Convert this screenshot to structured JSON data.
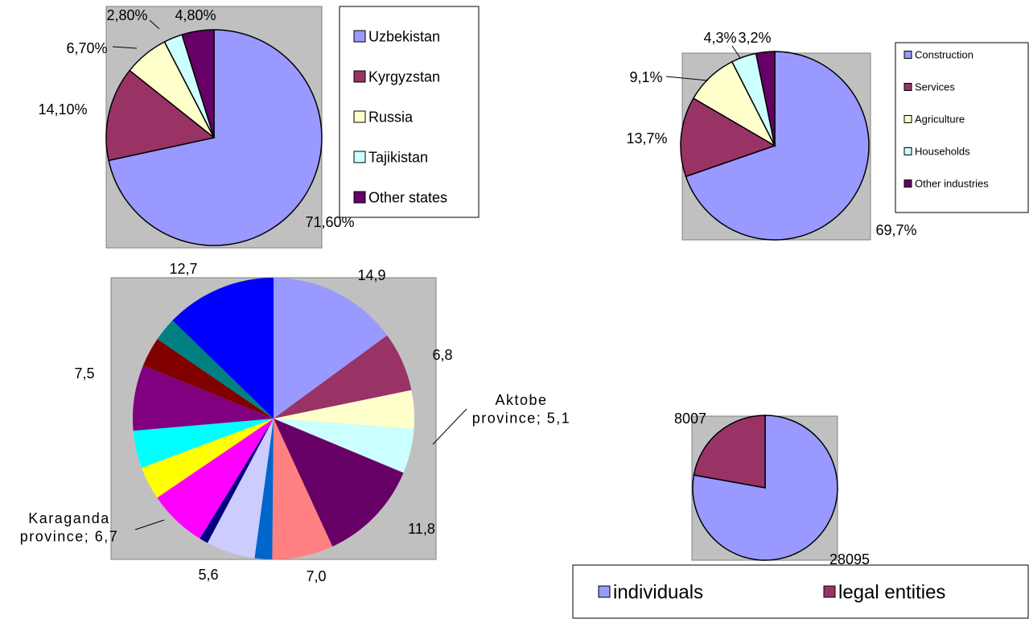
{
  "chart_data": [
    {
      "type": "pie",
      "title": "",
      "series": [
        {
          "name": "Uzbekistan",
          "value": 71.6,
          "label": "71,60%",
          "color": "#9999FF"
        },
        {
          "name": "Kyrgyzstan",
          "value": 14.1,
          "label": "14,10%",
          "color": "#993366"
        },
        {
          "name": "Russia",
          "value": 6.7,
          "label": "6,70%",
          "color": "#FFFFCC"
        },
        {
          "name": "Tajikistan",
          "value": 2.8,
          "label": "2,80%",
          "color": "#CCFFFF"
        },
        {
          "name": "Other states",
          "value": 4.8,
          "label": "4,80%",
          "color": "#660066"
        }
      ],
      "legend_position": "right"
    },
    {
      "type": "pie",
      "title": "",
      "series": [
        {
          "name": "Construction",
          "value": 69.7,
          "label": "69,7%",
          "color": "#9999FF"
        },
        {
          "name": "Services",
          "value": 13.7,
          "label": "13,7%",
          "color": "#993366"
        },
        {
          "name": "Agriculture",
          "value": 9.1,
          "label": "9,1%",
          "color": "#FFFFCC"
        },
        {
          "name": "Households",
          "value": 4.3,
          "label": "4,3%",
          "color": "#CCFFFF"
        },
        {
          "name": "Other industries",
          "value": 3.2,
          "label": "3,2%",
          "color": "#660066"
        }
      ],
      "legend_position": "right"
    },
    {
      "type": "pie",
      "title": "",
      "series": [
        {
          "value": 14.9,
          "label": "14,9",
          "color": "#9999FF"
        },
        {
          "value": 6.8,
          "label": "6,8",
          "color": "#993366"
        },
        {
          "value": 4.4,
          "label": "",
          "color": "#FFFFCC"
        },
        {
          "value": 5.1,
          "label": "Aktobe province; 5,1",
          "color": "#CCFFFF"
        },
        {
          "value": 11.8,
          "label": "11,8",
          "color": "#660066"
        },
        {
          "value": 7.0,
          "label": "7,0",
          "color": "#FF8080"
        },
        {
          "value": 2.0,
          "label": "",
          "color": "#0066CC"
        },
        {
          "value": 5.6,
          "label": "5,6",
          "color": "#CCCCFF"
        },
        {
          "value": 1.0,
          "label": "",
          "color": "#000080"
        },
        {
          "value": 6.7,
          "label": "Karaganda province; 6,7",
          "color": "#FF00FF"
        },
        {
          "value": 3.8,
          "label": "",
          "color": "#FFFF00"
        },
        {
          "value": 4.3,
          "label": "",
          "color": "#00FFFF"
        },
        {
          "value": 7.5,
          "label": "7,5",
          "color": "#800080"
        },
        {
          "value": 3.4,
          "label": "",
          "color": "#800000"
        },
        {
          "value": 2.7,
          "label": "",
          "color": "#008080"
        },
        {
          "value": 12.7,
          "label": "12,7",
          "color": "#0000FF"
        }
      ],
      "legend_position": "none"
    },
    {
      "type": "pie",
      "title": "",
      "series": [
        {
          "name": "individuals",
          "value": 28095,
          "label": "28095",
          "color": "#9999FF"
        },
        {
          "name": "legal entities",
          "value": 8007,
          "label": "8007",
          "color": "#993366"
        }
      ],
      "legend_position": "bottom"
    }
  ]
}
